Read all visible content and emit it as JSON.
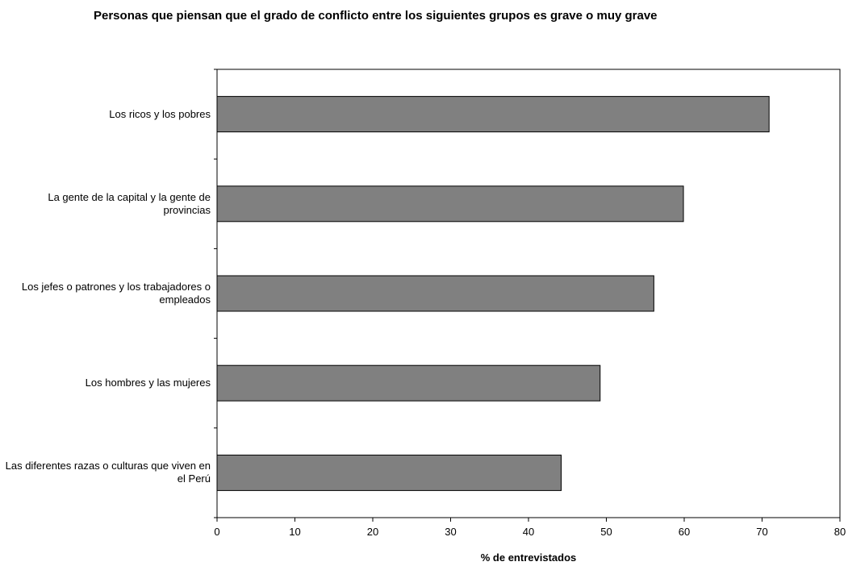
{
  "chart_data": {
    "type": "bar",
    "orientation": "horizontal",
    "title": "Personas que piensan que el grado de conflicto entre los siguientes grupos es grave o muy grave",
    "xlabel": "% de entrevistados",
    "ylabel": "",
    "categories": [
      "Los ricos y los pobres",
      "La gente de la capital y la gente de provincias",
      "Los jefes o patrones y los trabajadores o empleados",
      "Los hombres y las mujeres",
      "Las diferentes razas o culturas que viven en el Perú"
    ],
    "values": [
      70.9,
      59.9,
      56.1,
      49.2,
      44.2
    ],
    "xlim": [
      0,
      80
    ],
    "xticks": [
      0,
      10,
      20,
      30,
      40,
      50,
      60,
      70,
      80
    ],
    "grid": false,
    "legend": "none",
    "bar_color": "#808080"
  }
}
